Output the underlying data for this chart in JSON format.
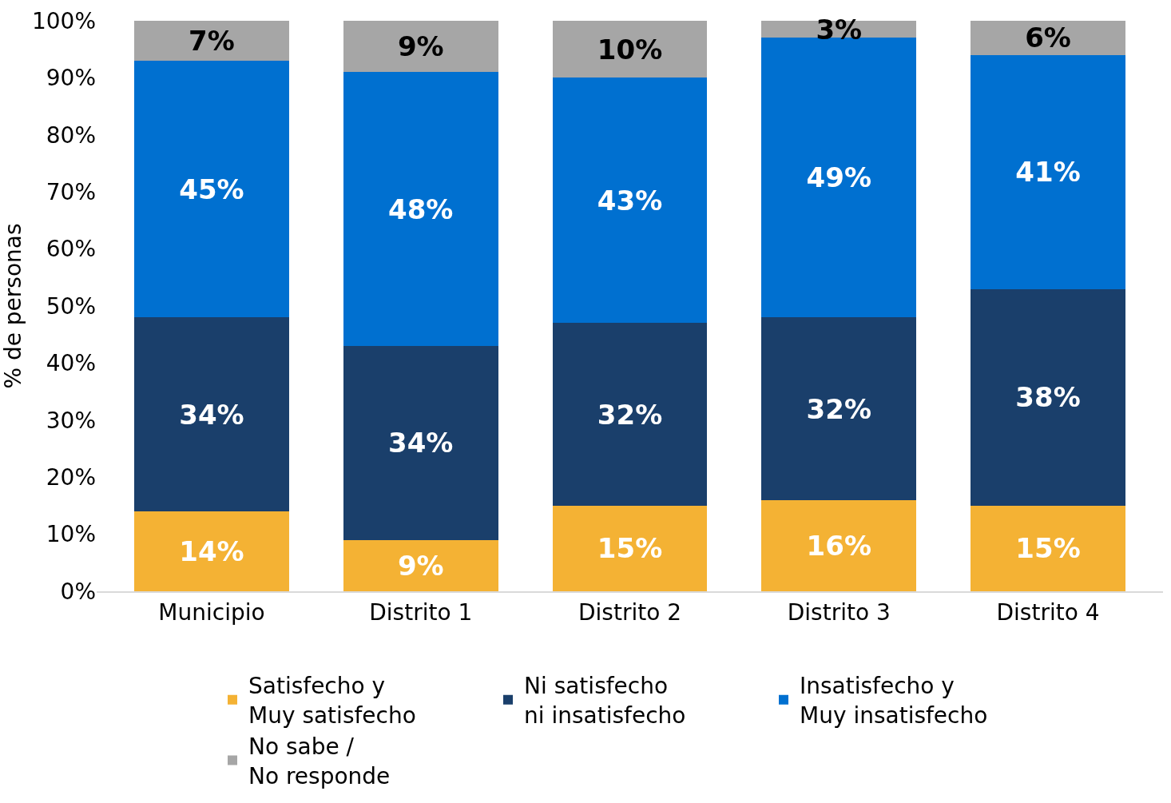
{
  "chart_data": {
    "type": "bar",
    "stacked": true,
    "ylabel": "% de personas",
    "categories": [
      "Municipio",
      "Distrito 1",
      "Distrito 2",
      "Distrito 3",
      "Distrito 4"
    ],
    "series": [
      {
        "name": "Satisfecho y\nMuy satisfecho",
        "color": "#f4b234",
        "values": [
          14,
          9,
          15,
          16,
          15
        ],
        "value_labels": [
          "14%",
          "9%",
          "15%",
          "16%",
          "15%"
        ]
      },
      {
        "name": "Ni satisfecho\nni insatisfecho",
        "color": "#1a3f6b",
        "values": [
          34,
          34,
          32,
          32,
          38
        ],
        "value_labels": [
          "34%",
          "34%",
          "32%",
          "32%",
          "38%"
        ]
      },
      {
        "name": "Insatisfecho y\nMuy insatisfecho",
        "color": "#0070d0",
        "values": [
          45,
          48,
          43,
          49,
          41
        ],
        "value_labels": [
          "45%",
          "48%",
          "43%",
          "49%",
          "41%"
        ]
      },
      {
        "name": "No sabe /\nNo responde",
        "color": "#a6a6a6",
        "values": [
          7,
          9,
          10,
          3,
          6
        ],
        "value_labels": [
          "7%",
          "9%",
          "10%",
          "3%",
          "6%"
        ]
      }
    ],
    "ylim": [
      0,
      100
    ],
    "yticks": [
      {
        "value": 0,
        "label": "0%"
      },
      {
        "value": 10,
        "label": "10%"
      },
      {
        "value": 20,
        "label": "20%"
      },
      {
        "value": 30,
        "label": "30%"
      },
      {
        "value": 40,
        "label": "40%"
      },
      {
        "value": 50,
        "label": "50%"
      },
      {
        "value": 60,
        "label": "60%"
      },
      {
        "value": 70,
        "label": "70%"
      },
      {
        "value": 80,
        "label": "80%"
      },
      {
        "value": 90,
        "label": "90%"
      },
      {
        "value": 100,
        "label": "100%"
      }
    ],
    "legend": "bottom"
  }
}
